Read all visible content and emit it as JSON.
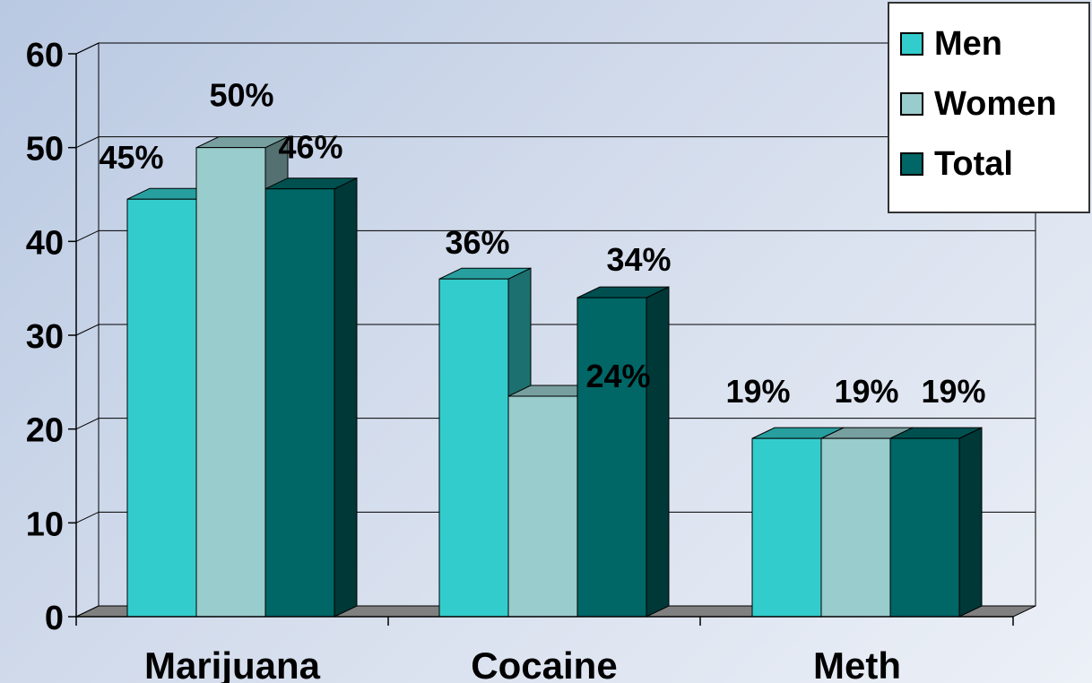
{
  "chart_data": {
    "type": "bar",
    "categories": [
      "Marijuana",
      "Cocaine",
      "Meth"
    ],
    "series": [
      {
        "name": "Men",
        "values": [
          44.5,
          36,
          19
        ],
        "labels": [
          "45%",
          "36%",
          "19%"
        ],
        "color": "#33cccc"
      },
      {
        "name": "Women",
        "values": [
          50,
          23.5,
          19
        ],
        "labels": [
          "50%",
          "24%",
          "19%"
        ],
        "color": "#99cccc"
      },
      {
        "name": "Total",
        "values": [
          45.6,
          34,
          19
        ],
        "labels": [
          "46%",
          "34%",
          "19%"
        ],
        "color": "#006666"
      }
    ],
    "ylim": [
      0,
      60
    ],
    "yticks": [
      "0",
      "10",
      "20",
      "30",
      "40",
      "50",
      "60"
    ],
    "grid": true,
    "three_d": true,
    "legend_position": "top-right",
    "title": "",
    "xlabel": "",
    "ylabel": ""
  }
}
